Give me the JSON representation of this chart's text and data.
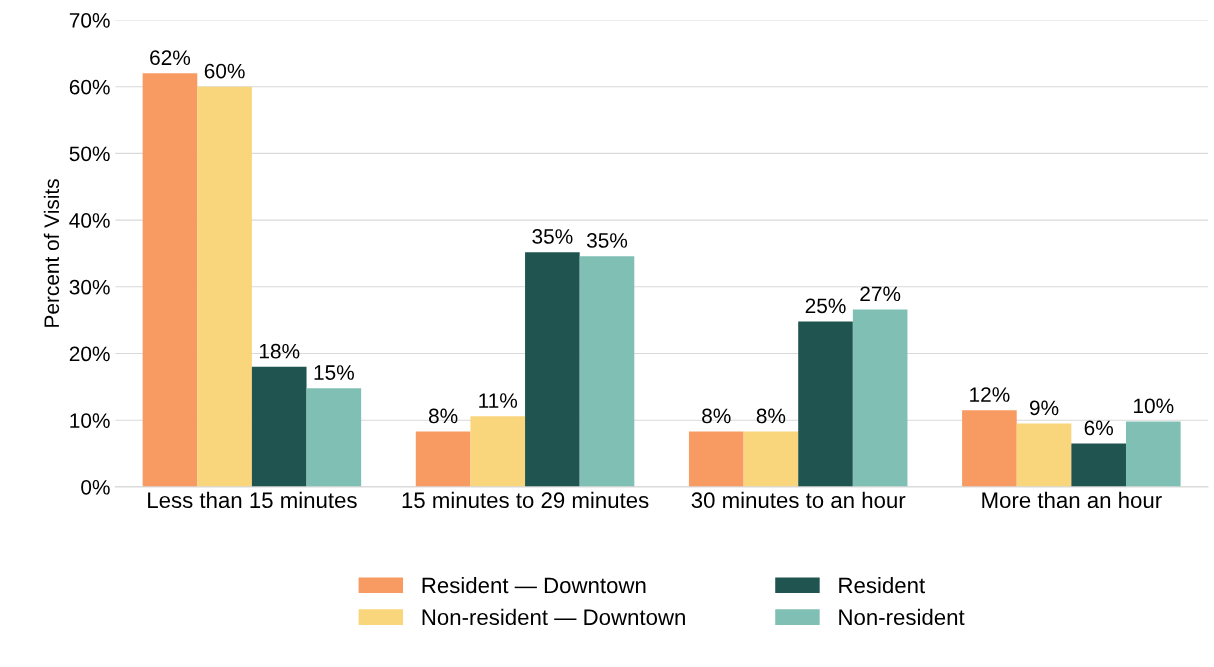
{
  "chart_data": {
    "type": "bar",
    "ylabel": "Percent of Visits",
    "categories": [
      "Less than 15 minutes",
      "15 minutes to 29 minutes",
      "30 minutes to an hour",
      "More than an hour"
    ],
    "series": [
      {
        "name": "Resident — Downtown",
        "color": "#f89b63",
        "values": [
          62,
          8.3,
          8.3,
          11.5
        ],
        "value_labels": [
          "62%",
          "8%",
          "8%",
          "12%"
        ]
      },
      {
        "name": "Non-resident — Downtown",
        "color": "#f9d67b",
        "values": [
          60,
          10.6,
          8.3,
          9.5
        ],
        "value_labels": [
          "60%",
          "11%",
          "8%",
          "9%"
        ]
      },
      {
        "name": "Resident",
        "color": "#1f5450",
        "values": [
          18,
          35.2,
          24.8,
          6.5
        ],
        "value_labels": [
          "18%",
          "35%",
          "25%",
          "6%"
        ]
      },
      {
        "name": "Non-resident",
        "color": "#80bfb3",
        "values": [
          14.8,
          34.6,
          26.6,
          9.8
        ],
        "value_labels": [
          "15%",
          "35%",
          "27%",
          "10%"
        ]
      }
    ],
    "ylim": [
      0,
      70
    ],
    "yticks": [
      {
        "value": 0,
        "label": "0%"
      },
      {
        "value": 10,
        "label": "10%"
      },
      {
        "value": 20,
        "label": "20%"
      },
      {
        "value": 30,
        "label": "30%"
      },
      {
        "value": 40,
        "label": "40%"
      },
      {
        "value": 50,
        "label": "50%"
      },
      {
        "value": 60,
        "label": "60%"
      },
      {
        "value": 70,
        "label": "70%"
      }
    ],
    "grid": "y",
    "legend": "bottom"
  }
}
